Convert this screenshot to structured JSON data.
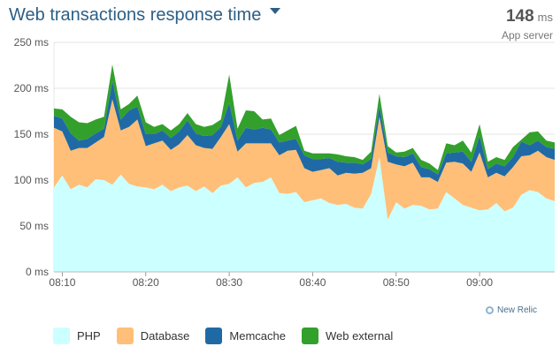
{
  "header": {
    "title": "Web transactions response time",
    "summary_value": "148",
    "summary_unit": "ms",
    "summary_sub": "App server"
  },
  "branding": {
    "label": "New Relic"
  },
  "chart_data": {
    "type": "area",
    "stacked": true,
    "title": "Web transactions response time",
    "x_ticks": [
      "08:10",
      "08:20",
      "08:30",
      "08:40",
      "08:50",
      "09:00"
    ],
    "y_ticks": [
      "0 ms",
      "50 ms",
      "100 ms",
      "150 ms",
      "200 ms",
      "250 ms"
    ],
    "ylim": [
      0,
      250
    ],
    "grid": true,
    "legend_position": "bottom-left",
    "x": [
      "08:09",
      "08:10",
      "08:11",
      "08:12",
      "08:13",
      "08:14",
      "08:15",
      "08:16",
      "08:17",
      "08:18",
      "08:19",
      "08:20",
      "08:21",
      "08:22",
      "08:23",
      "08:24",
      "08:25",
      "08:26",
      "08:27",
      "08:28",
      "08:29",
      "08:30",
      "08:31",
      "08:32",
      "08:33",
      "08:34",
      "08:35",
      "08:36",
      "08:37",
      "08:38",
      "08:39",
      "08:40",
      "08:41",
      "08:42",
      "08:43",
      "08:44",
      "08:45",
      "08:46",
      "08:47",
      "08:48",
      "08:49",
      "08:50",
      "08:51",
      "08:52",
      "08:53",
      "08:54",
      "08:55",
      "08:56",
      "08:57",
      "08:58",
      "08:59",
      "09:00",
      "09:01",
      "09:02",
      "09:03",
      "09:04",
      "09:05",
      "09:06",
      "09:07",
      "09:08",
      "09:09"
    ],
    "series": [
      {
        "name": "PHP",
        "color": "#ccffff",
        "values": [
          92,
          105,
          90,
          95,
          92,
          101,
          100,
          95,
          106,
          96,
          93,
          92,
          90,
          95,
          88,
          92,
          94,
          88,
          93,
          86,
          94,
          96,
          103,
          92,
          97,
          98,
          103,
          86,
          85,
          87,
          76,
          78,
          80,
          75,
          73,
          74,
          70,
          69,
          85,
          125,
          57,
          76,
          69,
          73,
          72,
          68,
          69,
          87,
          80,
          73,
          70,
          67,
          68,
          75,
          66,
          70,
          84,
          89,
          87,
          80,
          77
        ]
      },
      {
        "name": "Database",
        "color": "#ffbf78",
        "values": [
          65,
          48,
          42,
          40,
          43,
          40,
          47,
          93,
          48,
          62,
          73,
          45,
          50,
          48,
          45,
          47,
          55,
          50,
          42,
          48,
          53,
          65,
          28,
          48,
          43,
          42,
          37,
          41,
          47,
          46,
          37,
          31,
          31,
          38,
          32,
          34,
          37,
          39,
          28,
          44,
          63,
          41,
          46,
          46,
          31,
          35,
          29,
          32,
          40,
          45,
          39,
          63,
          35,
          33,
          38,
          44,
          42,
          38,
          45,
          45,
          45
        ]
      },
      {
        "name": "Memcache",
        "color": "#1f6aa5",
        "values": [
          13,
          14,
          19,
          8,
          10,
          10,
          9,
          20,
          12,
          18,
          14,
          13,
          10,
          11,
          13,
          14,
          16,
          13,
          13,
          15,
          11,
          23,
          12,
          17,
          15,
          17,
          15,
          14,
          11,
          12,
          14,
          14,
          12,
          11,
          15,
          11,
          12,
          9,
          10,
          12,
          10,
          9,
          10,
          10,
          11,
          9,
          8,
          10,
          10,
          13,
          11,
          18,
          9,
          10,
          11,
          11,
          16,
          11,
          11,
          11,
          12
        ]
      },
      {
        "name": "Web external",
        "color": "#33a02c",
        "values": [
          8,
          10,
          18,
          20,
          17,
          15,
          13,
          18,
          11,
          7,
          12,
          13,
          8,
          7,
          8,
          8,
          8,
          10,
          10,
          11,
          8,
          31,
          13,
          19,
          20,
          9,
          12,
          8,
          11,
          14,
          5,
          6,
          6,
          5,
          8,
          7,
          6,
          5,
          8,
          13,
          7,
          4,
          6,
          6,
          8,
          6,
          5,
          11,
          8,
          12,
          10,
          13,
          8,
          7,
          7,
          11,
          2,
          14,
          10,
          7,
          7
        ]
      }
    ]
  }
}
